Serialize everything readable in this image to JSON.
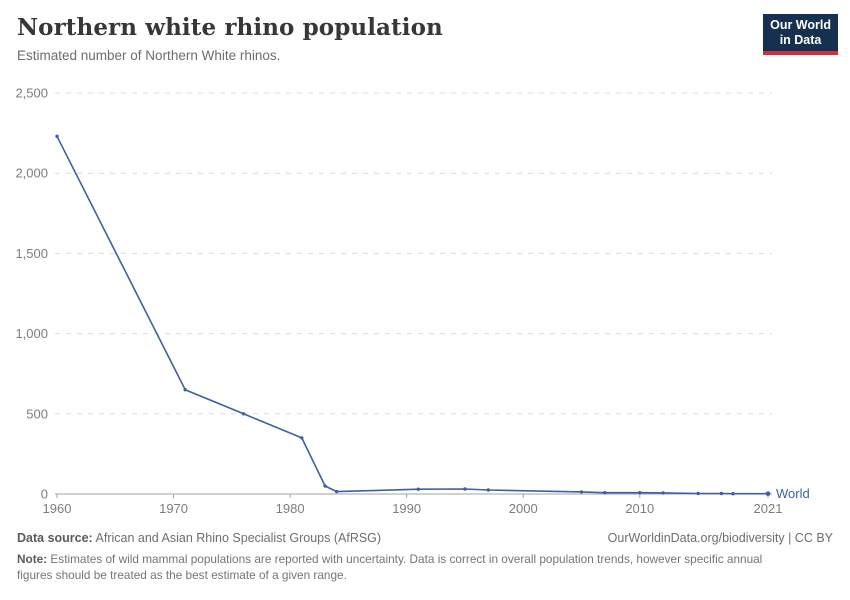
{
  "header": {
    "title": "Northern white rhino population",
    "subtitle": "Estimated number of Northern White rhinos.",
    "logo": {
      "line1": "Our World",
      "line2": "in Data",
      "bg_color": "#16304f",
      "bar_color": "#cf303e"
    }
  },
  "chart_data": {
    "type": "line",
    "title": "Northern white rhino population",
    "xlabel": "",
    "ylabel": "",
    "xlim": [
      1960,
      2021
    ],
    "ylim": [
      0,
      2500
    ],
    "x_ticks": [
      1960,
      1970,
      1980,
      1990,
      2000,
      2010,
      2021
    ],
    "y_ticks": [
      0,
      500,
      1000,
      1500,
      2000,
      2500
    ],
    "grid": "horizontal dashed",
    "legend_position": "end-of-line",
    "series": [
      {
        "name": "World",
        "color": "#3e5fa3",
        "points": [
          [
            1960,
            2230
          ],
          [
            1971,
            650
          ],
          [
            1976,
            500
          ],
          [
            1981,
            350
          ],
          [
            1983,
            50
          ],
          [
            1984,
            15
          ],
          [
            1991,
            30
          ],
          [
            1995,
            31
          ],
          [
            1997,
            25
          ],
          [
            2005,
            13
          ],
          [
            2007,
            8
          ],
          [
            2010,
            8
          ],
          [
            2012,
            7
          ],
          [
            2015,
            3
          ],
          [
            2017,
            3
          ],
          [
            2018,
            2
          ],
          [
            2021,
            2
          ]
        ]
      }
    ],
    "colors": {
      "axis": "#a3a3a3",
      "grid": "#dcdcdc",
      "tick_label": "#7d7d7d"
    }
  },
  "footer": {
    "source_label": "Data source:",
    "source_text": " African and Asian Rhino Specialist Groups (AfRSG)",
    "attribution": "OurWorldinData.org/biodiversity | CC BY",
    "note_label": "Note:",
    "note_text": " Estimates of wild mammal populations are reported with uncertainty. Data is correct in overall population trends, however specific annual figures should be treated as the best estimate of a given range."
  }
}
